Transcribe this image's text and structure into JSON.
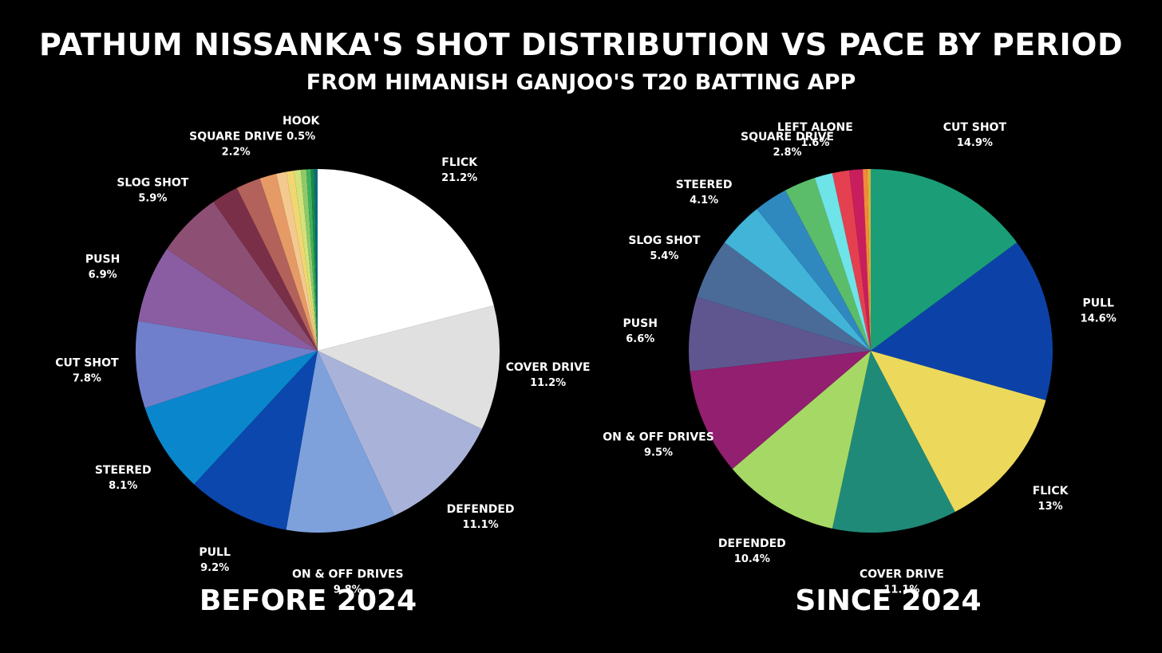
{
  "title": "PATHUM NISSANKA'S SHOT DISTRIBUTION VS PACE BY PERIOD",
  "subtitle": "FROM HIMANISH GANJOO'S T20 BATTING APP",
  "chart_data": [
    {
      "type": "pie",
      "title": "BEFORE 2024",
      "slices": [
        {
          "label": "FLICK",
          "value": 21.2,
          "pct_text": "21.2%",
          "color": "#ffffff",
          "show_label": true
        },
        {
          "label": "COVER DRIVE",
          "value": 11.2,
          "pct_text": "11.2%",
          "color": "#e0e0e0",
          "show_label": true
        },
        {
          "label": "DEFENDED",
          "value": 11.1,
          "pct_text": "11.1%",
          "color": "#a9b3da",
          "show_label": true
        },
        {
          "label": "ON & OFF DRIVES",
          "value": 9.8,
          "pct_text": "9.8%",
          "color": "#7ea1dc",
          "show_label": true
        },
        {
          "label": "PULL",
          "value": 9.2,
          "pct_text": "9.2%",
          "color": "#0b47ad",
          "show_label": true
        },
        {
          "label": "STEERED",
          "value": 8.1,
          "pct_text": "8.1%",
          "color": "#0a87cc",
          "show_label": true
        },
        {
          "label": "CUT SHOT",
          "value": 7.8,
          "pct_text": "7.8%",
          "color": "#6f7fcb",
          "show_label": true
        },
        {
          "label": "PUSH",
          "value": 6.9,
          "pct_text": "6.9%",
          "color": "#8a5da3",
          "show_label": true
        },
        {
          "label": "SLOG SHOT",
          "value": 5.9,
          "pct_text": "5.9%",
          "color": "#8d4f74",
          "show_label": true
        },
        {
          "label": "",
          "value": 2.4,
          "pct_text": "",
          "color": "#7a2f48",
          "show_label": false
        },
        {
          "label": "SQUARE DRIVE",
          "value": 2.2,
          "pct_text": "2.2%",
          "color": "#b2625a",
          "show_label": true
        },
        {
          "label": "",
          "value": 1.5,
          "pct_text": "",
          "color": "#e69a66",
          "show_label": false
        },
        {
          "label": "",
          "value": 0.9,
          "pct_text": "",
          "color": "#f4c98f",
          "show_label": false
        },
        {
          "label": "",
          "value": 0.7,
          "pct_text": "",
          "color": "#f0d772",
          "show_label": false
        },
        {
          "label": "",
          "value": 0.6,
          "pct_text": "",
          "color": "#d4e27a",
          "show_label": false
        },
        {
          "label": "HOOK",
          "value": 0.5,
          "pct_text": "0.5%",
          "color": "#8ec96b",
          "show_label": true
        },
        {
          "label": "",
          "value": 0.4,
          "pct_text": "",
          "color": "#3fb05a",
          "show_label": false
        },
        {
          "label": "",
          "value": 0.3,
          "pct_text": "",
          "color": "#178a4a",
          "show_label": false
        },
        {
          "label": "",
          "value": 0.3,
          "pct_text": "",
          "color": "#0d6b7c",
          "show_label": false
        }
      ]
    },
    {
      "type": "pie",
      "title": "SINCE 2024",
      "slices": [
        {
          "label": "CUT SHOT",
          "value": 14.9,
          "pct_text": "14.9%",
          "color": "#1b9e77",
          "show_label": true
        },
        {
          "label": "PULL",
          "value": 14.6,
          "pct_text": "14.6%",
          "color": "#0c42a8",
          "show_label": true
        },
        {
          "label": "FLICK",
          "value": 13,
          "pct_text": "13%",
          "color": "#ecd95b",
          "show_label": true
        },
        {
          "label": "COVER DRIVE",
          "value": 11.1,
          "pct_text": "11.1%",
          "color": "#1f8a78",
          "show_label": true
        },
        {
          "label": "DEFENDED",
          "value": 10.4,
          "pct_text": "10.4%",
          "color": "#a6d866",
          "show_label": true
        },
        {
          "label": "ON & OFF DRIVES",
          "value": 9.5,
          "pct_text": "9.5%",
          "color": "#921f6f",
          "show_label": true
        },
        {
          "label": "PUSH",
          "value": 6.6,
          "pct_text": "6.6%",
          "color": "#5f5690",
          "show_label": true
        },
        {
          "label": "SLOG SHOT",
          "value": 5.4,
          "pct_text": "5.4%",
          "color": "#4a6a98",
          "show_label": true
        },
        {
          "label": "STEERED",
          "value": 4.1,
          "pct_text": "4.1%",
          "color": "#41b4d8",
          "show_label": true
        },
        {
          "label": "",
          "value": 3.0,
          "pct_text": "",
          "color": "#2f88be",
          "show_label": false
        },
        {
          "label": "SQUARE DRIVE",
          "value": 2.8,
          "pct_text": "2.8%",
          "color": "#5bbd6a",
          "show_label": true
        },
        {
          "label": "LEFT ALONE",
          "value": 1.6,
          "pct_text": "1.6%",
          "color": "#6ee3e8",
          "show_label": true
        },
        {
          "label": "",
          "value": 1.5,
          "pct_text": "",
          "color": "#e5404f",
          "show_label": false
        },
        {
          "label": "",
          "value": 1.2,
          "pct_text": "",
          "color": "#c81e5d",
          "show_label": false
        },
        {
          "label": "",
          "value": 0.4,
          "pct_text": "",
          "color": "#f28a3a",
          "show_label": false
        },
        {
          "label": "",
          "value": 0.3,
          "pct_text": "",
          "color": "#d9b13a",
          "show_label": false
        }
      ]
    }
  ]
}
